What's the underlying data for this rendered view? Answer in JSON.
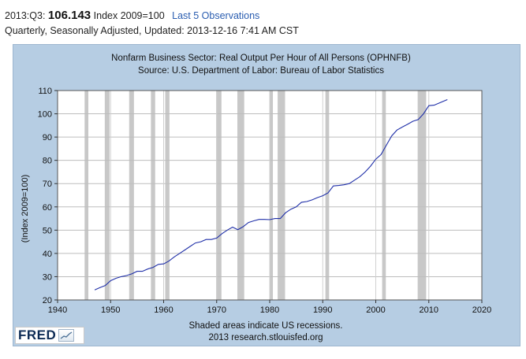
{
  "observation": {
    "period": "2013:Q3:",
    "value": "106.143",
    "units": "Index 2009=100",
    "last5_link": "Last 5 Observations"
  },
  "subtitle": "Quarterly, Seasonally Adjusted, Updated: 2013-12-16 7:41 AM CST",
  "chart_data": {
    "type": "line",
    "title": "Nonfarm Business Sector: Real Output Per Hour of All Persons (OPHNFB)",
    "source": "Source: U.S. Department of Labor: Bureau of Labor Statistics",
    "ylabel": "(Index 2009=100)",
    "xlabel": "",
    "xlim": [
      1940,
      2020
    ],
    "ylim": [
      20,
      110
    ],
    "xticks": [
      1940,
      1950,
      1960,
      1970,
      1980,
      1990,
      2000,
      2010,
      2020
    ],
    "yticks": [
      20,
      30,
      40,
      50,
      60,
      70,
      80,
      90,
      100,
      110
    ],
    "grid": true,
    "line_color": "#1f2fa8",
    "recession_color": "#c8c8c8",
    "recessions": [
      [
        1945.1,
        1945.8
      ],
      [
        1948.9,
        1949.8
      ],
      [
        1953.5,
        1954.4
      ],
      [
        1957.6,
        1958.4
      ],
      [
        1960.3,
        1961.1
      ],
      [
        1969.9,
        1970.9
      ],
      [
        1973.9,
        1975.2
      ],
      [
        1980.0,
        1980.6
      ],
      [
        1981.5,
        1982.9
      ],
      [
        1990.5,
        1991.2
      ],
      [
        2001.2,
        2001.9
      ],
      [
        2007.9,
        2009.5
      ]
    ],
    "series": [
      {
        "name": "OPHNFB",
        "x": [
          1947.0,
          1948.0,
          1949.0,
          1950.0,
          1951.0,
          1952.0,
          1953.0,
          1954.0,
          1955.0,
          1956.0,
          1957.0,
          1958.0,
          1959.0,
          1960.0,
          1961.0,
          1962.0,
          1963.0,
          1964.0,
          1965.0,
          1966.0,
          1967.0,
          1968.0,
          1969.0,
          1970.0,
          1971.0,
          1972.0,
          1973.0,
          1974.0,
          1975.0,
          1976.0,
          1977.0,
          1978.0,
          1979.0,
          1980.0,
          1981.0,
          1982.0,
          1983.0,
          1984.0,
          1985.0,
          1986.0,
          1987.0,
          1988.0,
          1989.0,
          1990.0,
          1991.0,
          1992.0,
          1993.0,
          1994.0,
          1995.0,
          1996.0,
          1997.0,
          1998.0,
          1999.0,
          2000.0,
          2001.0,
          2002.0,
          2003.0,
          2004.0,
          2005.0,
          2006.0,
          2007.0,
          2008.0,
          2009.0,
          2010.0,
          2011.0,
          2012.0,
          2013.5
        ],
        "y": [
          24.3,
          25.3,
          26.2,
          28.3,
          29.3,
          30.0,
          30.5,
          31.2,
          32.3,
          32.3,
          33.3,
          34.0,
          35.3,
          35.5,
          36.7,
          38.5,
          40.0,
          41.5,
          43.0,
          44.5,
          45.0,
          46.0,
          46.0,
          46.6,
          48.5,
          50.0,
          51.3,
          50.2,
          51.5,
          53.3,
          54.0,
          54.6,
          54.6,
          54.5,
          55.0,
          55.0,
          57.5,
          59.0,
          60.0,
          62.0,
          62.3,
          63.0,
          64.0,
          64.8,
          66.0,
          69.0,
          69.2,
          69.5,
          70.0,
          71.5,
          73.0,
          75.0,
          77.5,
          80.5,
          82.5,
          86.5,
          90.5,
          93.0,
          94.3,
          95.5,
          96.8,
          97.5,
          100.0,
          103.5,
          103.7,
          104.7,
          106.1
        ]
      }
    ],
    "footer_note": "Shaded areas indicate US recessions.",
    "footer_copyright": "2013 research.stlouisfed.org"
  },
  "logo": {
    "text": "FRED",
    "icon": "fred-chart-icon"
  }
}
